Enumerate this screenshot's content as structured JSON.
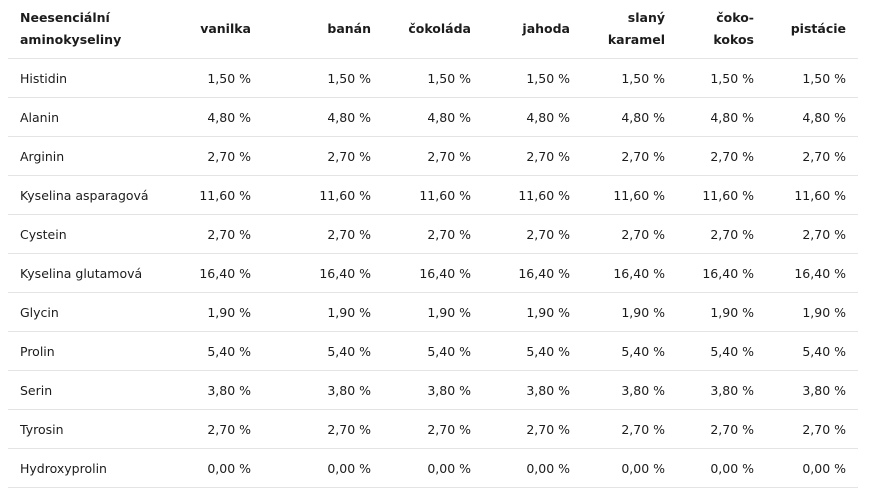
{
  "table": {
    "headers": [
      [
        "Neesenciální",
        "aminokyseliny"
      ],
      [
        "vanilka"
      ],
      [
        "banán"
      ],
      [
        "čokoláda"
      ],
      [
        "jahoda"
      ],
      [
        "slaný",
        "karamel"
      ],
      [
        "čoko-",
        "kokos"
      ],
      [
        "pistácie"
      ]
    ],
    "rows": [
      [
        "Histidin",
        "1,50 %",
        "1,50 %",
        "1,50 %",
        "1,50 %",
        "1,50 %",
        "1,50 %",
        "1,50 %"
      ],
      [
        "Alanin",
        "4,80 %",
        "4,80 %",
        "4,80 %",
        "4,80 %",
        "4,80 %",
        "4,80 %",
        "4,80 %"
      ],
      [
        "Arginin",
        "2,70 %",
        "2,70 %",
        "2,70 %",
        "2,70 %",
        "2,70 %",
        "2,70 %",
        "2,70 %"
      ],
      [
        "Kyselina asparagová",
        "11,60 %",
        "11,60 %",
        "11,60 %",
        "11,60 %",
        "11,60 %",
        "11,60 %",
        "11,60 %"
      ],
      [
        "Cystein",
        "2,70 %",
        "2,70 %",
        "2,70 %",
        "2,70 %",
        "2,70 %",
        "2,70 %",
        "2,70 %"
      ],
      [
        "Kyselina glutamová",
        "16,40 %",
        "16,40 %",
        "16,40 %",
        "16,40 %",
        "16,40 %",
        "16,40 %",
        "16,40 %"
      ],
      [
        "Glycin",
        "1,90 %",
        "1,90 %",
        "1,90 %",
        "1,90 %",
        "1,90 %",
        "1,90 %",
        "1,90 %"
      ],
      [
        "Prolin",
        "5,40 %",
        "5,40 %",
        "5,40 %",
        "5,40 %",
        "5,40 %",
        "5,40 %",
        "5,40 %"
      ],
      [
        "Serin",
        "3,80 %",
        "3,80 %",
        "3,80 %",
        "3,80 %",
        "3,80 %",
        "3,80 %",
        "3,80 %"
      ],
      [
        "Tyrosin",
        "2,70 %",
        "2,70 %",
        "2,70 %",
        "2,70 %",
        "2,70 %",
        "2,70 %",
        "2,70 %"
      ],
      [
        "Hydroxyprolin",
        "0,00 %",
        "0,00 %",
        "0,00 %",
        "0,00 %",
        "0,00 %",
        "0,00 %",
        "0,00 %"
      ]
    ]
  }
}
